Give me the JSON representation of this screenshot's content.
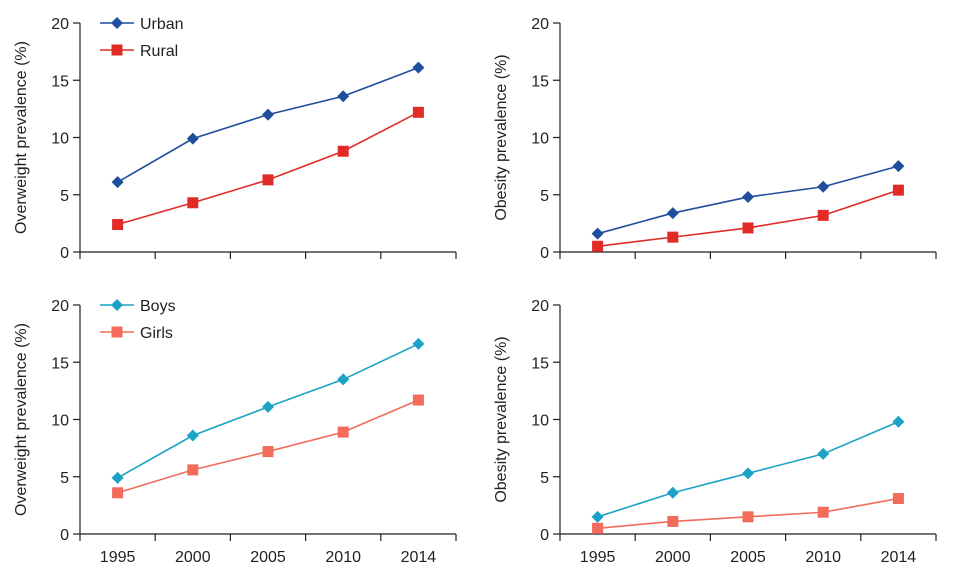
{
  "chart_data": [
    {
      "type": "line",
      "panel": "top-left",
      "title": "",
      "xlabel": "",
      "ylabel": "Overweight prevalence (%)",
      "x": [
        1995,
        2000,
        2005,
        2010,
        2014
      ],
      "xticklabels": [],
      "ylim": [
        0,
        20
      ],
      "yticks": [
        0,
        5,
        10,
        15,
        20
      ],
      "legend": "top-left",
      "series": [
        {
          "name": "Urban",
          "color": "#1f4e9c",
          "marker": "diamond",
          "values": [
            6.1,
            9.9,
            12.0,
            13.6,
            16.1
          ]
        },
        {
          "name": "Rural",
          "color": "#e02b27",
          "marker": "square",
          "values": [
            2.4,
            4.3,
            6.3,
            8.8,
            12.2
          ]
        }
      ]
    },
    {
      "type": "line",
      "panel": "top-right",
      "title": "",
      "xlabel": "",
      "ylabel": "Obesity prevalence (%)",
      "x": [
        1995,
        2000,
        2005,
        2010,
        2014
      ],
      "xticklabels": [],
      "ylim": [
        0,
        20
      ],
      "yticks": [
        0,
        5,
        10,
        15,
        20
      ],
      "legend": "none",
      "series": [
        {
          "name": "Urban",
          "color": "#1f4e9c",
          "marker": "diamond",
          "values": [
            1.6,
            3.4,
            4.8,
            5.7,
            7.5
          ]
        },
        {
          "name": "Rural",
          "color": "#e02b27",
          "marker": "square",
          "values": [
            0.5,
            1.3,
            2.1,
            3.2,
            5.4
          ]
        }
      ]
    },
    {
      "type": "line",
      "panel": "bottom-left",
      "title": "",
      "xlabel": "",
      "ylabel": "Overweight prevalence (%)",
      "x": [
        1995,
        2000,
        2005,
        2010,
        2014
      ],
      "xticklabels": [
        "1995",
        "2000",
        "2005",
        "2010",
        "2014"
      ],
      "ylim": [
        0,
        20
      ],
      "yticks": [
        0,
        5,
        10,
        15,
        20
      ],
      "legend": "top-left",
      "series": [
        {
          "name": "Boys",
          "color": "#1ba3c6",
          "marker": "diamond",
          "values": [
            4.9,
            8.6,
            11.1,
            13.5,
            16.6
          ]
        },
        {
          "name": "Girls",
          "color": "#f26b5b",
          "marker": "square",
          "values": [
            3.6,
            5.6,
            7.2,
            8.9,
            11.7
          ]
        }
      ]
    },
    {
      "type": "line",
      "panel": "bottom-right",
      "title": "",
      "xlabel": "",
      "ylabel": "Obesity prevalence (%)",
      "x": [
        1995,
        2000,
        2005,
        2010,
        2014
      ],
      "xticklabels": [
        "1995",
        "2000",
        "2005",
        "2010",
        "2014"
      ],
      "ylim": [
        0,
        20
      ],
      "yticks": [
        0,
        5,
        10,
        15,
        20
      ],
      "legend": "none",
      "series": [
        {
          "name": "Boys",
          "color": "#1ba3c6",
          "marker": "diamond",
          "values": [
            1.5,
            3.6,
            5.3,
            7.0,
            9.8
          ]
        },
        {
          "name": "Girls",
          "color": "#f26b5b",
          "marker": "square",
          "values": [
            0.5,
            1.1,
            1.5,
            1.9,
            3.1
          ]
        }
      ]
    }
  ]
}
